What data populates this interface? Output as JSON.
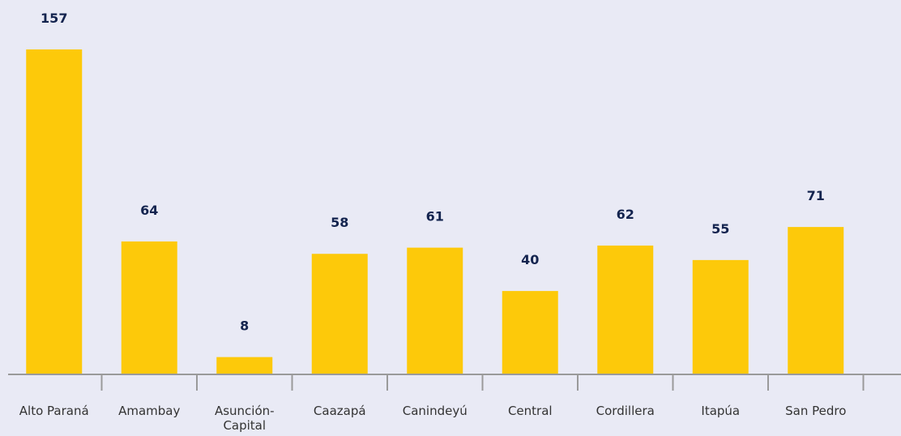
{
  "chart_data": {
    "type": "bar",
    "categories": [
      "Alto Paraná",
      "Amambay",
      "Asunción-Capital",
      "Caazapá",
      "Canindeyú",
      "Central",
      "Cordillera",
      "Itapúa",
      "San Pedro"
    ],
    "values": [
      157,
      64,
      8,
      58,
      61,
      40,
      62,
      55,
      71
    ],
    "color": "#fdc90a"
  }
}
